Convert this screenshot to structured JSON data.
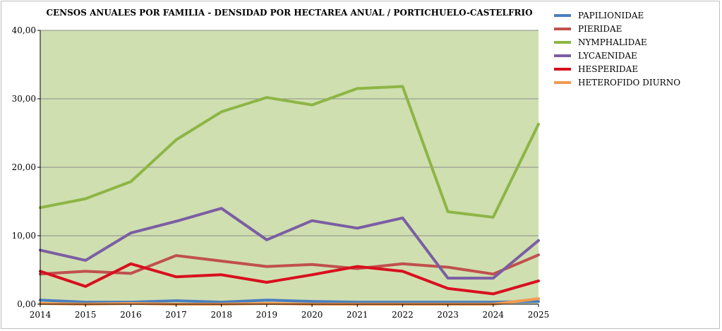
{
  "chart_data": {
    "type": "line",
    "title": "CENSOS ANUALES POR FAMILIA - DENSIDAD POR HECTAREA ANUAL / PORTICHUELO-CASTELFRIO",
    "xlabel": "",
    "ylabel": "",
    "categories": [
      "2014",
      "2015",
      "2016",
      "2017",
      "2018",
      "2019",
      "2020",
      "2021",
      "2022",
      "2023",
      "2024",
      "2025"
    ],
    "ylim": [
      0,
      40
    ],
    "yticks": [
      0,
      10,
      20,
      30,
      40
    ],
    "ytick_labels": [
      "0,00",
      "10,00",
      "20,00",
      "30,00",
      "40,00"
    ],
    "grid": true,
    "plot_background": "#cfdfb0",
    "legend_position": "right",
    "series": [
      {
        "name": "PAPILIONIDAE",
        "color": "#4a7ebf",
        "values": [
          0.6,
          0.3,
          0.3,
          0.5,
          0.3,
          0.6,
          0.4,
          0.3,
          0.3,
          0.3,
          0.3,
          0.4
        ]
      },
      {
        "name": "PIERIDAE",
        "color": "#c0504d",
        "values": [
          4.4,
          4.8,
          4.5,
          7.1,
          6.3,
          5.5,
          5.8,
          5.2,
          5.9,
          5.4,
          4.4,
          7.2
        ]
      },
      {
        "name": "NYMPHALIDAE",
        "color": "#8db545",
        "values": [
          14.1,
          15.4,
          17.9,
          24.0,
          28.1,
          30.2,
          29.1,
          31.5,
          31.8,
          13.5,
          12.7,
          26.3
        ]
      },
      {
        "name": "LYCAENIDAE",
        "color": "#7b5ea3",
        "values": [
          7.9,
          6.4,
          10.4,
          12.1,
          14.0,
          9.4,
          12.2,
          11.1,
          12.6,
          3.8,
          3.8,
          9.3
        ]
      },
      {
        "name": "HESPERIDAE",
        "color": "#d90f1f",
        "values": [
          4.8,
          2.6,
          5.9,
          4.0,
          4.3,
          3.2,
          4.3,
          5.5,
          4.8,
          2.3,
          1.5,
          3.4
        ]
      },
      {
        "name": "HETEROFIDO DIURNO",
        "color": "#f39a4f",
        "values": [
          0.1,
          0.0,
          0.1,
          0.0,
          0.0,
          0.1,
          0.0,
          0.0,
          0.0,
          0.0,
          0.0,
          0.8
        ]
      }
    ]
  }
}
